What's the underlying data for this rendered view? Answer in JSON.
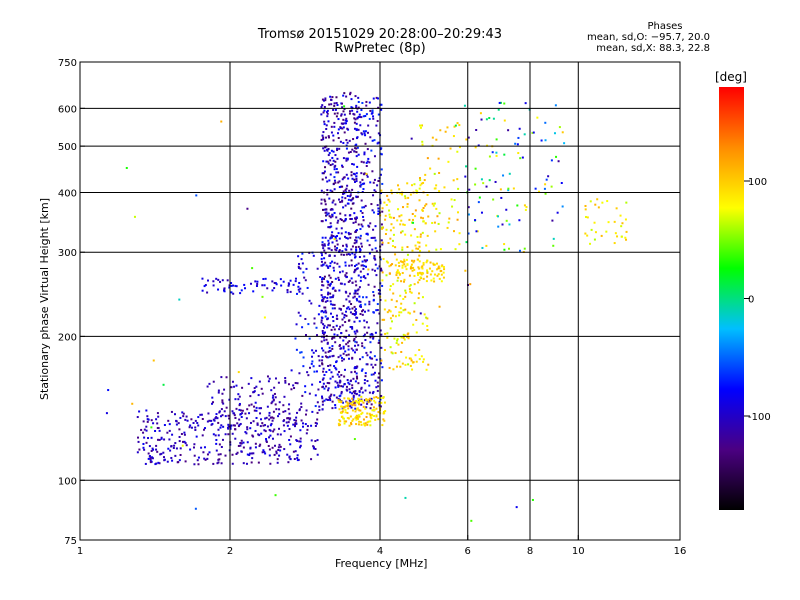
{
  "chart_data": {
    "type": "scatter",
    "title": "Tromsø 20151029 20:28:00–20:29:43",
    "subtitle": "RwPretec (8p)",
    "xlabel": "Frequency [MHz]",
    "ylabel": "Stationary phase Virtual Height [km]",
    "x_scale": "log",
    "y_scale": "log",
    "xlim": [
      1,
      16
    ],
    "ylim": [
      75,
      750
    ],
    "x_ticks": [
      1,
      2,
      4,
      6,
      8,
      10,
      16
    ],
    "y_ticks": [
      75,
      100,
      200,
      300,
      400,
      500,
      600,
      750
    ],
    "x_grid": [
      1,
      2,
      4,
      6,
      8,
      10
    ],
    "y_grid": [
      100,
      200,
      300,
      400,
      500,
      600
    ],
    "stats": {
      "heading": "Phases",
      "o_line": "mean, sd,O: −95.7, 20.0",
      "x_line": "mean, sd,X:  88.3, 22.8"
    },
    "colorbar": {
      "label": "[deg]",
      "min": -180,
      "max": 180,
      "ticks": [
        100,
        0,
        -100
      ],
      "colors": [
        "#000000",
        "#4b0082",
        "#0000ff",
        "#00bfff",
        "#00ff00",
        "#ffff00",
        "#ff8c00",
        "#ff0000"
      ]
    },
    "clusters": [
      {
        "name": "o-trace-low",
        "xmin": 1.3,
        "xmax": 3.0,
        "ymin": 108,
        "ymax": 140,
        "n": 380,
        "cmin": -130,
        "cmax": -80
      },
      {
        "name": "o-trace-low-b",
        "xmin": 1.8,
        "xmax": 2.8,
        "ymin": 130,
        "ymax": 165,
        "n": 120,
        "cmin": -130,
        "cmax": -85
      },
      {
        "name": "o-ledge-250",
        "xmin": 1.75,
        "xmax": 2.9,
        "ymin": 245,
        "ymax": 265,
        "n": 70,
        "cmin": -115,
        "cmax": -70
      },
      {
        "name": "o-rise",
        "xmin": 2.7,
        "xmax": 3.15,
        "ymin": 140,
        "ymax": 300,
        "n": 90,
        "cmin": -120,
        "cmax": -60
      },
      {
        "name": "o-column-main",
        "xmin": 3.05,
        "xmax": 3.6,
        "ymin": 140,
        "ymax": 650,
        "n": 700,
        "cmin": -140,
        "cmax": -70
      },
      {
        "name": "o-column-b",
        "xmin": 3.55,
        "xmax": 4.05,
        "ymin": 140,
        "ymax": 640,
        "n": 380,
        "cmin": -135,
        "cmax": -60
      },
      {
        "name": "x-band-low",
        "xmin": 3.3,
        "xmax": 4.1,
        "ymin": 130,
        "ymax": 150,
        "n": 150,
        "cmin": 70,
        "cmax": 120
      },
      {
        "name": "x-column",
        "xmin": 4.0,
        "xmax": 5.0,
        "ymin": 170,
        "ymax": 420,
        "n": 240,
        "cmin": 60,
        "cmax": 120
      },
      {
        "name": "x-band-270",
        "xmin": 4.3,
        "xmax": 5.4,
        "ymin": 260,
        "ymax": 290,
        "n": 80,
        "cmin": 75,
        "cmax": 115
      },
      {
        "name": "x-upper",
        "xmin": 4.8,
        "xmax": 5.8,
        "ymin": 300,
        "ymax": 560,
        "n": 70,
        "cmin": 60,
        "cmax": 120
      },
      {
        "name": "mixed-high",
        "xmin": 5.9,
        "xmax": 9.4,
        "ymin": 300,
        "ymax": 620,
        "n": 110,
        "cmin": -120,
        "cmax": 110
      },
      {
        "name": "x-far",
        "xmin": 10.3,
        "xmax": 12.5,
        "ymin": 310,
        "ymax": 390,
        "n": 35,
        "cmin": 60,
        "cmax": 110
      },
      {
        "name": "sparse",
        "xmin": 1.1,
        "xmax": 9.0,
        "ymin": 80,
        "ymax": 620,
        "n": 40,
        "cmin": -130,
        "cmax": 120
      }
    ]
  }
}
